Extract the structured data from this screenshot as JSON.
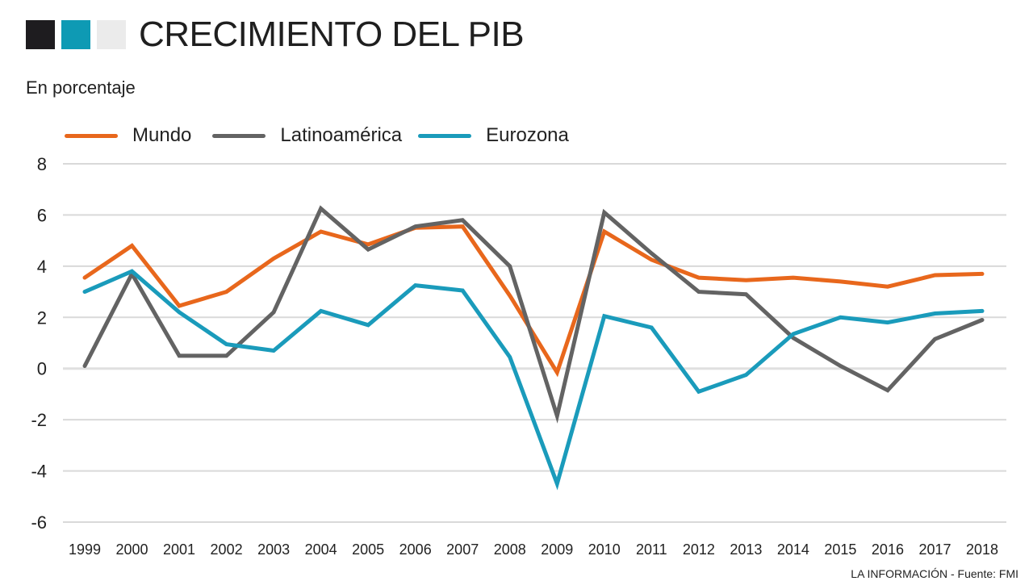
{
  "header": {
    "title": "CRECIMIENTO DEL PIB",
    "subtitle": "En porcentaje",
    "squares": [
      "#1e1c1f",
      "#0e9ab4",
      "#ebebeb"
    ]
  },
  "footer": {
    "credit": "LA INFORMACIÓN - Fuente: FMI"
  },
  "chart_data": {
    "type": "line",
    "title": "CRECIMIENTO DEL PIB",
    "subtitle": "En porcentaje",
    "xlabel": "",
    "ylabel": "",
    "ylim": [
      -6,
      8
    ],
    "yticks": [
      8,
      6,
      4,
      2,
      0,
      -2,
      -4,
      -6
    ],
    "grid": true,
    "legend_position": "top-left",
    "x": [
      "1999",
      "2000",
      "2001",
      "2002",
      "2003",
      "2004",
      "2005",
      "2006",
      "2007",
      "2008",
      "2009",
      "2010",
      "2011",
      "2012",
      "2013",
      "2014",
      "2015",
      "2016",
      "2017",
      "2018"
    ],
    "series": [
      {
        "name": "Mundo",
        "color": "#e8671c",
        "values": [
          3.55,
          4.8,
          2.45,
          3.0,
          4.3,
          5.35,
          4.85,
          5.5,
          5.55,
          2.85,
          -0.15,
          5.35,
          4.25,
          3.55,
          3.45,
          3.55,
          3.4,
          3.2,
          3.65,
          3.7
        ]
      },
      {
        "name": "Latinoamérica",
        "color": "#636363",
        "values": [
          0.1,
          3.7,
          0.5,
          0.5,
          2.2,
          6.25,
          4.65,
          5.55,
          5.8,
          4.0,
          -1.85,
          6.1,
          4.5,
          3.0,
          2.9,
          1.2,
          0.1,
          -0.85,
          1.15,
          1.9
        ]
      },
      {
        "name": "Eurozona",
        "color": "#1a9bbb",
        "values": [
          3.0,
          3.8,
          2.2,
          0.95,
          0.7,
          2.25,
          1.7,
          3.25,
          3.05,
          0.45,
          -4.5,
          2.05,
          1.6,
          -0.9,
          -0.25,
          1.35,
          2.0,
          1.8,
          2.15,
          2.25
        ]
      }
    ]
  }
}
